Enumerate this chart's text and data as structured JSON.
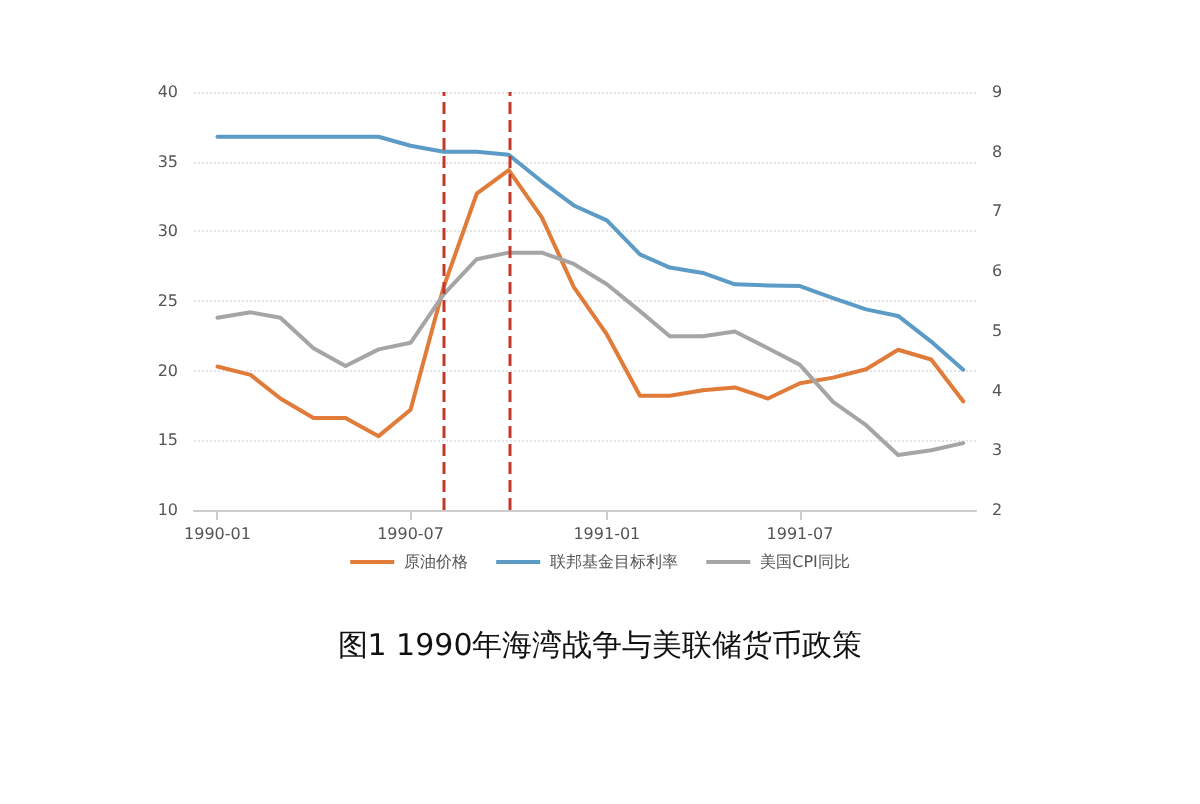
{
  "chart_data": {
    "type": "line",
    "title": "图1 1990年海湾战争与美联储货币政策",
    "x": [
      "1990-01",
      "1990-02",
      "1990-03",
      "1990-04",
      "1990-05",
      "1990-06",
      "1990-07",
      "1990-08",
      "1990-09",
      "1990-10",
      "1990-11",
      "1990-12",
      "1991-01",
      "1991-02",
      "1991-03",
      "1991-04",
      "1991-05",
      "1991-06",
      "1991-07",
      "1991-08",
      "1991-09",
      "1991-10",
      "1991-11",
      "1991-12"
    ],
    "series": [
      {
        "name": "原油价格",
        "color": "#e07b39",
        "values": [
          20.3,
          19.7,
          18.0,
          16.6,
          16.6,
          15.3,
          17.2,
          26.0,
          32.7,
          34.4,
          31.0,
          26.0,
          22.6,
          18.2,
          18.2,
          18.6,
          18.8,
          18.0,
          19.1,
          19.5,
          20.1,
          21.5,
          20.8,
          17.8
        ]
      },
      {
        "name": "联邦基金目标利率",
        "color": "#5b9bc5",
        "axis": "y2",
        "values": [
          8.25,
          8.25,
          8.25,
          8.25,
          8.25,
          8.25,
          8.1,
          8.0,
          8.0,
          7.95,
          7.5,
          7.1,
          6.85,
          6.28,
          6.06,
          5.97,
          5.78,
          5.76,
          5.75,
          5.55,
          5.36,
          5.25,
          4.82,
          4.35
        ]
      },
      {
        "name": "美国CPI同比",
        "color": "#a5a5a5",
        "axis": "y2",
        "values": [
          5.22,
          5.31,
          5.22,
          4.71,
          4.41,
          4.69,
          4.8,
          5.61,
          6.2,
          6.31,
          6.31,
          6.12,
          5.78,
          5.33,
          4.91,
          4.91,
          4.99,
          4.71,
          4.43,
          3.81,
          3.42,
          2.92,
          3.0,
          3.12
        ]
      }
    ],
    "xlim": [
      "1989-12-10",
      "1991-12-13"
    ],
    "xticks": [
      {
        "value": "1990-01",
        "label": "1990-01"
      },
      {
        "value": "1990-07",
        "label": "1990-07"
      },
      {
        "value": "1991-01",
        "label": "1991-01"
      },
      {
        "value": "1991-07",
        "label": "1991-07"
      }
    ],
    "ylim": [
      10,
      40
    ],
    "yticks": [
      10,
      15,
      20,
      25,
      30,
      35,
      40
    ],
    "y2lim": [
      2,
      9
    ],
    "y2ticks": [
      2,
      3,
      4,
      5,
      6,
      7,
      8,
      9
    ],
    "ref_lines": [
      {
        "axis": "x",
        "value": "1990-08",
        "color": "#c0392b",
        "line_style": "dashed"
      },
      {
        "axis": "x",
        "value": "1990-10",
        "color": "#c0392b",
        "line_style": "dashed"
      }
    ],
    "grid": "y",
    "legend": "bottom",
    "marker": "none",
    "line_style": "solid"
  }
}
